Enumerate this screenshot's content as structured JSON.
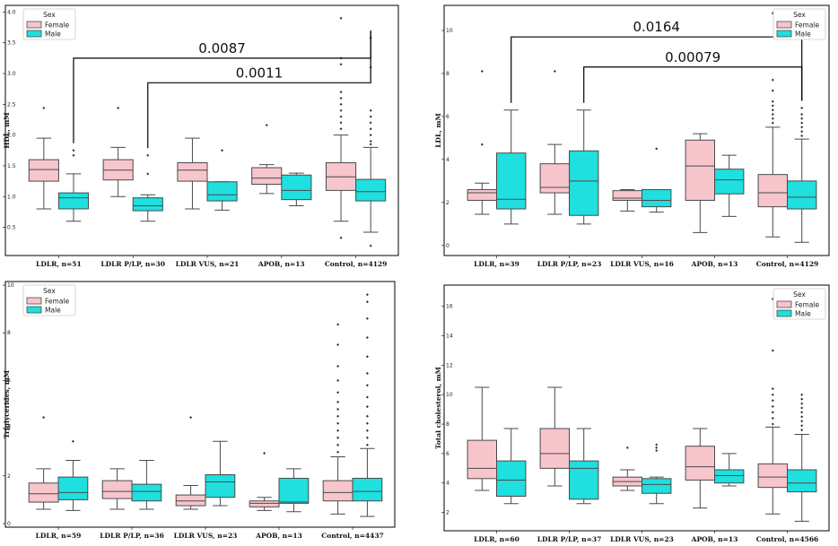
{
  "legend": {
    "title": "Sex",
    "entries": [
      "Female",
      "Male"
    ]
  },
  "colors": {
    "female": "#f7c5cc",
    "male": "#1fdfdf",
    "stroke": "#4a4a4a",
    "frame": "#000000"
  },
  "chart_data": [
    {
      "id": "hdl",
      "type": "box",
      "ylabel": "HDL, mM",
      "ylim": [
        0.1,
        4.05
      ],
      "yticks": [
        "0.5",
        "1.0",
        "1.5",
        "2.0",
        "2.5",
        "3.0",
        "3.5",
        "4.0"
      ],
      "categories": [
        "LDLR, n=51",
        "LDLR P/LP, n=30",
        "LDLR VUS, n=21",
        "APOB, n=13",
        "Control, n=4129"
      ],
      "series": [
        {
          "name": "Female",
          "boxes": [
            {
              "whislo": 0.8,
              "q1": 1.25,
              "med": 1.44,
              "q3": 1.6,
              "whishi": 1.95,
              "fliers": [
                2.44
              ]
            },
            {
              "whislo": 1.0,
              "q1": 1.27,
              "med": 1.43,
              "q3": 1.6,
              "whishi": 1.8,
              "fliers": [
                2.44
              ]
            },
            {
              "whislo": 0.8,
              "q1": 1.25,
              "med": 1.43,
              "q3": 1.55,
              "whishi": 1.95,
              "fliers": []
            },
            {
              "whislo": 1.05,
              "q1": 1.2,
              "med": 1.3,
              "q3": 1.47,
              "whishi": 1.52,
              "fliers": [
                2.16
              ]
            },
            {
              "whislo": 0.6,
              "q1": 1.1,
              "med": 1.32,
              "q3": 1.55,
              "whishi": 2.0,
              "fliers": [
                0.33,
                2.1,
                2.2,
                2.3,
                2.4,
                2.5,
                2.6,
                2.7,
                3.15,
                3.25,
                3.9
              ]
            }
          ]
        },
        {
          "name": "Male",
          "boxes": [
            {
              "whislo": 0.6,
              "q1": 0.8,
              "med": 0.98,
              "q3": 1.06,
              "whishi": 1.37,
              "fliers": [
                1.67,
                1.75
              ]
            },
            {
              "whislo": 0.6,
              "q1": 0.77,
              "med": 0.85,
              "q3": 0.98,
              "whishi": 1.03,
              "fliers": [
                1.37,
                1.67
              ]
            },
            {
              "whislo": 0.78,
              "q1": 0.93,
              "med": 1.03,
              "q3": 1.24,
              "whishi": 1.24,
              "fliers": [
                1.75
              ]
            },
            {
              "whislo": 0.85,
              "q1": 0.95,
              "med": 1.1,
              "q3": 1.35,
              "whishi": 1.38,
              "fliers": []
            },
            {
              "whislo": 0.42,
              "q1": 0.93,
              "med": 1.08,
              "q3": 1.28,
              "whishi": 1.8,
              "fliers": [
                0.2,
                1.85,
                1.9,
                2.0,
                2.1,
                2.2,
                2.3,
                2.4,
                3.1,
                3.58
              ]
            }
          ]
        }
      ],
      "annotations": [
        {
          "label": "0.0087",
          "from": "LDLR, n=51 Male",
          "to": "Control, n=4129 Male",
          "y": 3.25
        },
        {
          "label": "0.0011",
          "from": "LDLR P/LP, n=30 Male",
          "to": "Control, n=4129 Male",
          "y": 2.85
        }
      ],
      "legend_position": "top-left"
    },
    {
      "id": "ldl",
      "type": "box",
      "ylabel": "LDL, mM",
      "ylim": [
        -0.3,
        11.0
      ],
      "yticks": [
        "0",
        "2",
        "4",
        "6",
        "8",
        "10"
      ],
      "categories": [
        "LDLR, n=39",
        "LDLR P/LP, n=23",
        "LDLR VUS, n=16",
        "APOB, n=13",
        "Control, n=4129"
      ],
      "series": [
        {
          "name": "Female",
          "boxes": [
            {
              "whislo": 1.45,
              "q1": 2.1,
              "med": 2.45,
              "q3": 2.6,
              "whishi": 2.9,
              "fliers": [
                4.7,
                8.1
              ]
            },
            {
              "whislo": 1.45,
              "q1": 2.45,
              "med": 2.7,
              "q3": 3.8,
              "whishi": 4.7,
              "fliers": [
                8.1
              ]
            },
            {
              "whislo": 1.6,
              "q1": 2.1,
              "med": 2.2,
              "q3": 2.55,
              "whishi": 2.6,
              "fliers": []
            },
            {
              "whislo": 0.6,
              "q1": 2.1,
              "med": 3.7,
              "q3": 4.9,
              "whishi": 5.2,
              "fliers": []
            },
            {
              "whislo": 0.4,
              "q1": 1.8,
              "med": 2.45,
              "q3": 3.3,
              "whishi": 5.5,
              "fliers": [
                5.7,
                5.9,
                6.1,
                6.3,
                6.5,
                6.7,
                7.2,
                7.7,
                10.8
              ]
            }
          ]
        },
        {
          "name": "Male",
          "boxes": [
            {
              "whislo": 1.0,
              "q1": 1.7,
              "med": 2.15,
              "q3": 4.3,
              "whishi": 6.3,
              "fliers": []
            },
            {
              "whislo": 1.0,
              "q1": 1.4,
              "med": 3.0,
              "q3": 4.4,
              "whishi": 6.3,
              "fliers": []
            },
            {
              "whislo": 1.55,
              "q1": 1.8,
              "med": 2.1,
              "q3": 2.6,
              "whishi": 2.6,
              "fliers": [
                4.5
              ]
            },
            {
              "whislo": 1.35,
              "q1": 2.4,
              "med": 3.05,
              "q3": 3.55,
              "whishi": 4.2,
              "fliers": []
            },
            {
              "whislo": 0.15,
              "q1": 1.7,
              "med": 2.25,
              "q3": 3.0,
              "whishi": 4.95,
              "fliers": [
                5.1,
                5.3,
                5.5,
                5.7,
                5.9,
                6.1,
                6.4
              ]
            }
          ]
        }
      ],
      "annotations": [
        {
          "label": "0.0164",
          "from": "LDLR, n=39 Male",
          "to": "Control, n=4129 Male",
          "y": 9.7
        },
        {
          "label": "0.00079",
          "from": "LDLR P/LP, n=23 Male",
          "to": "Control, n=4129 Male",
          "y": 8.3
        }
      ],
      "legend_position": "top-right"
    },
    {
      "id": "tg",
      "type": "box",
      "ylabel": "Triglycerides, mM",
      "ylim": [
        0.0,
        10.0
      ],
      "yticks": [
        "0",
        "2",
        "4",
        "6",
        "8",
        "10"
      ],
      "categories": [
        "LDLR, n=59",
        "LDLR P/LP, n=36",
        "LDLR VUS, n=23",
        "APOB, n=13",
        "Control, n=4437"
      ],
      "series": [
        {
          "name": "Female",
          "boxes": [
            {
              "whislo": 0.6,
              "q1": 0.9,
              "med": 1.25,
              "q3": 1.7,
              "whishi": 2.3,
              "fliers": [
                4.45
              ]
            },
            {
              "whislo": 0.6,
              "q1": 1.05,
              "med": 1.35,
              "q3": 1.8,
              "whishi": 2.3,
              "fliers": []
            },
            {
              "whislo": 0.6,
              "q1": 0.75,
              "med": 0.95,
              "q3": 1.2,
              "whishi": 1.6,
              "fliers": [
                4.45
              ]
            },
            {
              "whislo": 0.55,
              "q1": 0.7,
              "med": 0.85,
              "q3": 0.95,
              "whishi": 1.1,
              "fliers": [
                2.95
              ]
            },
            {
              "whislo": 0.4,
              "q1": 0.95,
              "med": 1.3,
              "q3": 1.8,
              "whishi": 2.8,
              "fliers": [
                3.0,
                3.3,
                3.6,
                3.9,
                4.2,
                4.5,
                4.8,
                5.1,
                5.5,
                6.0,
                6.6,
                7.5,
                8.35
              ]
            }
          ]
        },
        {
          "name": "Male",
          "boxes": [
            {
              "whislo": 0.55,
              "q1": 1.0,
              "med": 1.3,
              "q3": 1.95,
              "whishi": 2.65,
              "fliers": [
                3.45
              ]
            },
            {
              "whislo": 0.6,
              "q1": 0.95,
              "med": 1.35,
              "q3": 1.65,
              "whishi": 2.65,
              "fliers": []
            },
            {
              "whislo": 0.75,
              "q1": 1.1,
              "med": 1.75,
              "q3": 2.05,
              "whishi": 3.45,
              "fliers": []
            },
            {
              "whislo": 0.5,
              "q1": 0.85,
              "med": 0.9,
              "q3": 1.9,
              "whishi": 2.3,
              "fliers": []
            },
            {
              "whislo": 0.3,
              "q1": 0.95,
              "med": 1.35,
              "q3": 1.9,
              "whishi": 3.15,
              "fliers": [
                3.3,
                3.6,
                3.9,
                4.2,
                4.5,
                4.9,
                5.3,
                5.8,
                6.3,
                7.0,
                7.8,
                8.6,
                9.3,
                9.6
              ]
            }
          ]
        }
      ],
      "annotations": [],
      "legend_position": "top-left"
    },
    {
      "id": "tc",
      "type": "box",
      "ylabel": "Total cholesterol, mM",
      "ylim": [
        1.0,
        17.2
      ],
      "yticks": [
        "2",
        "4",
        "6",
        "8",
        "10",
        "12",
        "14",
        "16"
      ],
      "categories": [
        "LDLR, n=60",
        "LDLR P/LP, n=37",
        "LDLR VUS, n=23",
        "APOB, n=13",
        "Control, n=4566"
      ],
      "series": [
        {
          "name": "Female",
          "boxes": [
            {
              "whislo": 3.5,
              "q1": 4.3,
              "med": 5.0,
              "q3": 6.9,
              "whishi": 10.5,
              "fliers": []
            },
            {
              "whislo": 3.8,
              "q1": 5.0,
              "med": 6.0,
              "q3": 7.7,
              "whishi": 10.5,
              "fliers": []
            },
            {
              "whislo": 3.5,
              "q1": 3.8,
              "med": 4.1,
              "q3": 4.4,
              "whishi": 4.9,
              "fliers": [
                6.4
              ]
            },
            {
              "whislo": 2.3,
              "q1": 4.2,
              "med": 5.1,
              "q3": 6.5,
              "whishi": 7.7,
              "fliers": []
            },
            {
              "whislo": 1.9,
              "q1": 3.7,
              "med": 4.4,
              "q3": 5.3,
              "whishi": 7.8,
              "fliers": [
                8.0,
                8.4,
                8.8,
                9.2,
                9.6,
                10.0,
                10.4,
                13.0,
                16.5
              ]
            }
          ]
        },
        {
          "name": "Male",
          "boxes": [
            {
              "whislo": 2.6,
              "q1": 3.1,
              "med": 4.2,
              "q3": 5.5,
              "whishi": 7.7,
              "fliers": []
            },
            {
              "whislo": 2.6,
              "q1": 2.9,
              "med": 5.0,
              "q3": 5.5,
              "whishi": 7.7,
              "fliers": []
            },
            {
              "whislo": 2.6,
              "q1": 3.3,
              "med": 3.9,
              "q3": 4.3,
              "whishi": 4.4,
              "fliers": [
                6.2,
                6.4,
                6.6
              ]
            },
            {
              "whislo": 3.8,
              "q1": 4.0,
              "med": 4.5,
              "q3": 4.9,
              "whishi": 6.0,
              "fliers": []
            },
            {
              "whislo": 1.4,
              "q1": 3.4,
              "med": 4.0,
              "q3": 4.9,
              "whishi": 7.3,
              "fliers": [
                7.6,
                7.9,
                8.2,
                8.5,
                8.8,
                9.1,
                9.4,
                9.7,
                10.0
              ]
            }
          ]
        }
      ],
      "annotations": [],
      "legend_position": "top-right"
    }
  ]
}
